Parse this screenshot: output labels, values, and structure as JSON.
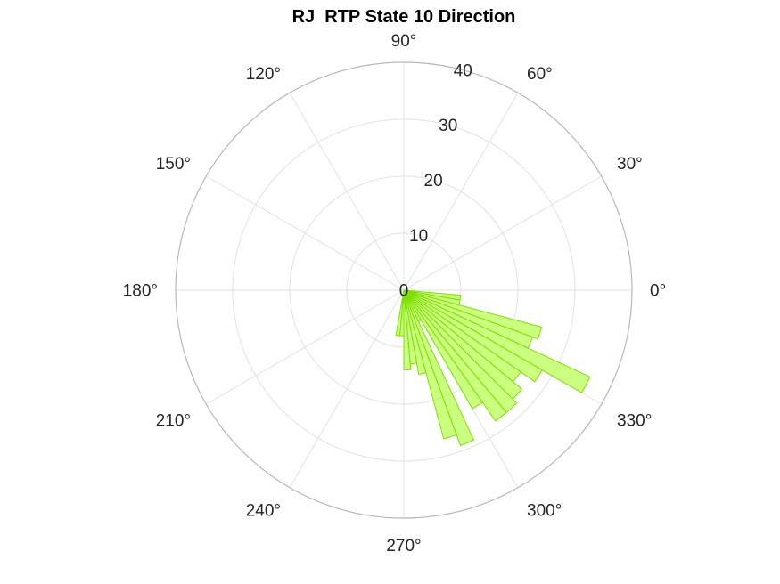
{
  "chart_data": {
    "type": "polar-histogram",
    "title": "RJ  RTP State 10 Direction",
    "angle_ticks": [
      "0°",
      "30°",
      "60°",
      "90°",
      "120°",
      "150°",
      "180°",
      "210°",
      "240°",
      "270°",
      "300°",
      "330°"
    ],
    "radial_ticks": [
      "0",
      "10",
      "20",
      "30",
      "40"
    ],
    "rlim": [
      0,
      40
    ],
    "bins": [
      {
        "start": 350,
        "end": 355,
        "count": 10
      },
      {
        "start": 345,
        "end": 350,
        "count": 10
      },
      {
        "start": 340,
        "end": 345,
        "count": 25
      },
      {
        "start": 335,
        "end": 340,
        "count": 24
      },
      {
        "start": 330,
        "end": 335,
        "count": 36
      },
      {
        "start": 325,
        "end": 330,
        "count": 28
      },
      {
        "start": 320,
        "end": 325,
        "count": 25
      },
      {
        "start": 315,
        "end": 320,
        "count": 27
      },
      {
        "start": 310,
        "end": 315,
        "count": 28
      },
      {
        "start": 305,
        "end": 310,
        "count": 28
      },
      {
        "start": 300,
        "end": 305,
        "count": 24
      },
      {
        "start": 295,
        "end": 300,
        "count": 6
      },
      {
        "start": 290,
        "end": 295,
        "count": 29
      },
      {
        "start": 285,
        "end": 290,
        "count": 27
      },
      {
        "start": 280,
        "end": 285,
        "count": 15
      },
      {
        "start": 275,
        "end": 280,
        "count": 13
      },
      {
        "start": 270,
        "end": 275,
        "count": 14
      },
      {
        "start": 265,
        "end": 270,
        "count": 8
      },
      {
        "start": 260,
        "end": 265,
        "count": 8
      }
    ],
    "bar_fill": "#a6ff2a",
    "bar_edge": "#7fe000",
    "grid": true
  }
}
